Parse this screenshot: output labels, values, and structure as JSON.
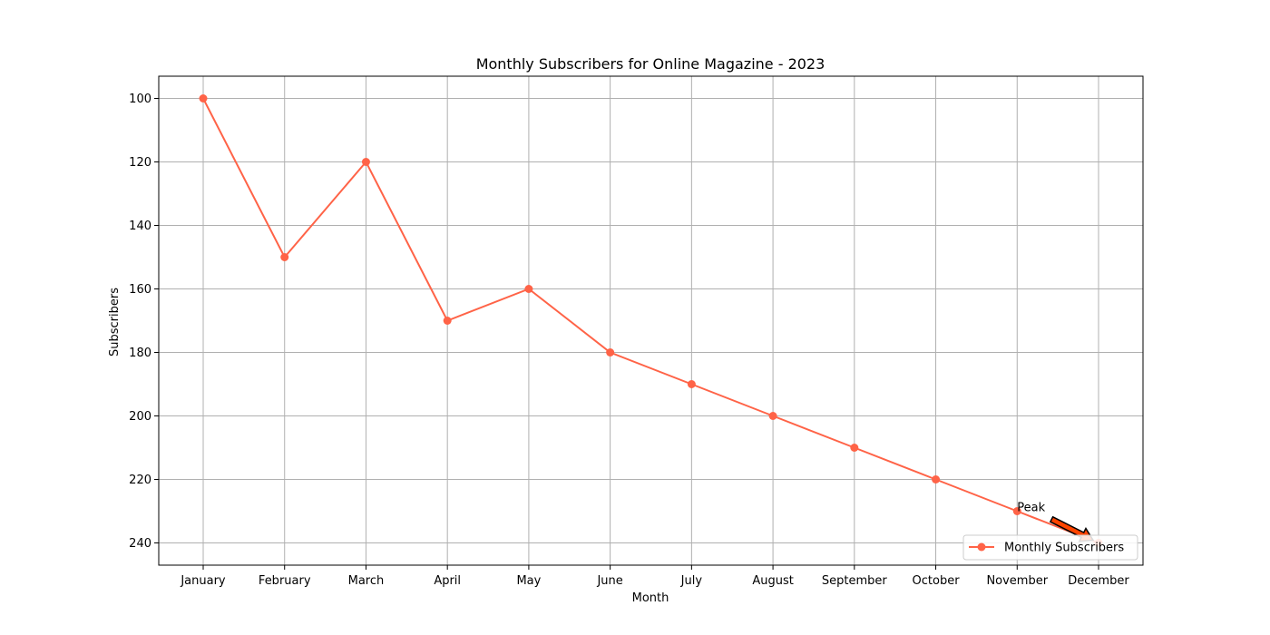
{
  "chart_data": {
    "type": "line",
    "title": "Monthly Subscribers for Online Magazine - 2023",
    "xlabel": "Month",
    "ylabel": "Subscribers",
    "categories": [
      "January",
      "February",
      "March",
      "April",
      "May",
      "June",
      "July",
      "August",
      "September",
      "October",
      "November",
      "December"
    ],
    "series": [
      {
        "name": "Monthly Subscribers",
        "values": [
          100,
          150,
          120,
          170,
          160,
          180,
          190,
          200,
          210,
          220,
          230,
          240
        ],
        "color": "#ff6347"
      }
    ],
    "ylim": [
      247,
      93
    ],
    "y_inverted": true,
    "yticks": [
      100,
      120,
      140,
      160,
      180,
      200,
      220,
      240
    ],
    "grid": true,
    "legend_position": "lower-right",
    "annotation": {
      "text": "Peak",
      "target_category": "December",
      "target_value": 240,
      "text_category": "November",
      "text_value": 230,
      "arrow_color": "#ff4500"
    }
  }
}
